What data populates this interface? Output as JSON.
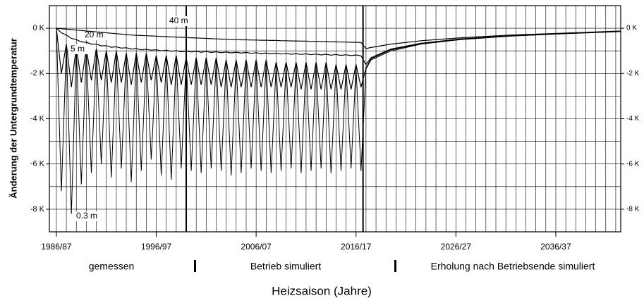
{
  "chart_data": {
    "type": "line",
    "ylabel": "Änderung der Untergrundtemperatur",
    "xlabel": "Heizsaison (Jahre)",
    "section_labels": [
      "gemessen",
      "Betrieb simuliert",
      "Erholung nach Betriebsende simuliert"
    ],
    "xlim": [
      1985.8,
      2043
    ],
    "ylim": [
      -9,
      1
    ],
    "xticks": [
      {
        "value": 1986.5,
        "label": "1986/87"
      },
      {
        "value": 1996.5,
        "label": "1996/97"
      },
      {
        "value": 2006.5,
        "label": "2006/07"
      },
      {
        "value": 2016.5,
        "label": "2016/17"
      },
      {
        "value": 2026.5,
        "label": "2026/27"
      },
      {
        "value": 2036.5,
        "label": "2036/37"
      }
    ],
    "yticks": [
      {
        "value": 0,
        "label": "0 K"
      },
      {
        "value": -2,
        "label": "-2 K"
      },
      {
        "value": -4,
        "label": "-4 K"
      },
      {
        "value": -6,
        "label": "-6 K"
      },
      {
        "value": -8,
        "label": "-8 K"
      }
    ],
    "ygrid": [
      -9,
      -8,
      -7,
      -6,
      -5,
      -4,
      -3,
      -2,
      -1,
      0
    ],
    "xgrid": [
      1986.5,
      1987.5,
      1988.5,
      1989.5,
      1990.5,
      1991.5,
      1992.5,
      1993.5,
      1994.5,
      1995.5,
      1996.5,
      1997.5,
      1998.5,
      1999.5,
      2000.5,
      2001.5,
      2002.5,
      2003.5,
      2004.5,
      2005.5,
      2006.5,
      2007.5,
      2008.5,
      2009.5,
      2010.5,
      2011.5,
      2012.5,
      2013.5,
      2014.5,
      2015.5,
      2016.5,
      2017.5,
      2018.5,
      2019.5,
      2020.5,
      2021.5,
      2022.5,
      2023.5,
      2024.5,
      2025.5,
      2026.5,
      2027.5,
      2028.5,
      2029.5,
      2030.5,
      2031.5,
      2032.5,
      2033.5,
      2034.5,
      2035.5,
      2036.5,
      2037.5,
      2038.5,
      2039.5,
      2040.5,
      2041.5,
      2042.5
    ],
    "dividers": [
      1999.5,
      2017.2
    ],
    "grid": true,
    "x": [
      1986.5,
      1987,
      1987.5,
      1988,
      1988.5,
      1989,
      1989.5,
      1990,
      1990.5,
      1991,
      1991.5,
      1992,
      1992.5,
      1993,
      1993.5,
      1994,
      1994.5,
      1995,
      1995.5,
      1996,
      1996.5,
      1997,
      1997.5,
      1998,
      1998.5,
      1999,
      1999.5,
      2000,
      2000.5,
      2001,
      2001.5,
      2002,
      2002.5,
      2003,
      2003.5,
      2004,
      2004.5,
      2005,
      2005.5,
      2006,
      2006.5,
      2007,
      2007.5,
      2008,
      2008.5,
      2009,
      2009.5,
      2010,
      2010.5,
      2011,
      2011.5,
      2012,
      2012.5,
      2013,
      2013.5,
      2014,
      2014.5,
      2015,
      2015.5,
      2016,
      2016.5,
      2017,
      2017.5,
      2018,
      2020,
      2023,
      2027,
      2032,
      2037,
      2043
    ],
    "series": [
      {
        "name": "0.3 m",
        "color": "#000000",
        "values": [
          0,
          -7.2,
          -0.8,
          -8.2,
          -0.9,
          -6.9,
          -1.0,
          -6.4,
          -1.0,
          -6.0,
          -1.1,
          -6.6,
          -1.1,
          -6.2,
          -1.2,
          -6.8,
          -1.2,
          -6.3,
          -1.2,
          -5.8,
          -1.3,
          -6.5,
          -1.3,
          -6.7,
          -1.3,
          -6.2,
          -1.4,
          -6.3,
          -1.4,
          -6.4,
          -1.4,
          -6.2,
          -1.4,
          -6.3,
          -1.5,
          -6.5,
          -1.5,
          -6.4,
          -1.5,
          -6.2,
          -1.5,
          -6.3,
          -1.5,
          -6.4,
          -1.6,
          -6.3,
          -1.6,
          -6.2,
          -1.6,
          -6.4,
          -1.6,
          -6.3,
          -1.6,
          -6.2,
          -1.6,
          -6.4,
          -1.7,
          -6.3,
          -1.7,
          -6.2,
          -1.7,
          -6.3,
          -1.8,
          -1.4,
          -1.0,
          -0.7,
          -0.5,
          -0.35,
          -0.25,
          -0.15
        ]
      },
      {
        "name": "5 m",
        "color": "#000000",
        "values": [
          0,
          -2.0,
          -0.7,
          -2.6,
          -0.8,
          -2.4,
          -0.9,
          -2.3,
          -0.9,
          -2.3,
          -1.0,
          -2.4,
          -1.0,
          -2.4,
          -1.1,
          -2.5,
          -1.1,
          -2.4,
          -1.1,
          -2.3,
          -1.2,
          -2.4,
          -1.2,
          -2.5,
          -1.2,
          -2.5,
          -1.3,
          -2.5,
          -1.3,
          -2.5,
          -1.3,
          -2.5,
          -1.3,
          -2.6,
          -1.4,
          -2.6,
          -1.4,
          -2.6,
          -1.4,
          -2.6,
          -1.4,
          -2.6,
          -1.4,
          -2.6,
          -1.5,
          -2.6,
          -1.5,
          -2.6,
          -1.5,
          -2.7,
          -1.5,
          -2.7,
          -1.5,
          -2.7,
          -1.5,
          -2.7,
          -1.6,
          -2.7,
          -1.6,
          -2.7,
          -1.6,
          -2.6,
          -1.75,
          -1.35,
          -0.95,
          -0.68,
          -0.48,
          -0.34,
          -0.24,
          -0.14
        ]
      },
      {
        "name": "20 m",
        "color": "#000000",
        "values": [
          0,
          -0.2,
          -0.3,
          -0.45,
          -0.5,
          -0.6,
          -0.62,
          -0.7,
          -0.7,
          -0.78,
          -0.77,
          -0.84,
          -0.82,
          -0.88,
          -0.86,
          -0.92,
          -0.9,
          -0.95,
          -0.93,
          -0.97,
          -0.95,
          -1.0,
          -0.97,
          -1.02,
          -0.99,
          -1.04,
          -1.01,
          -1.05,
          -1.02,
          -1.06,
          -1.03,
          -1.07,
          -1.04,
          -1.08,
          -1.05,
          -1.09,
          -1.06,
          -1.1,
          -1.07,
          -1.11,
          -1.08,
          -1.12,
          -1.09,
          -1.13,
          -1.1,
          -1.14,
          -1.11,
          -1.15,
          -1.12,
          -1.16,
          -1.13,
          -1.17,
          -1.14,
          -1.18,
          -1.15,
          -1.19,
          -1.16,
          -1.2,
          -1.17,
          -1.21,
          -1.18,
          -1.22,
          -1.6,
          -1.3,
          -0.92,
          -0.66,
          -0.47,
          -0.33,
          -0.23,
          -0.13
        ]
      },
      {
        "name": "40 m",
        "color": "#000000",
        "values": [
          0,
          -0.02,
          -0.04,
          -0.06,
          -0.08,
          -0.1,
          -0.12,
          -0.14,
          -0.16,
          -0.18,
          -0.2,
          -0.22,
          -0.24,
          -0.26,
          -0.28,
          -0.3,
          -0.31,
          -0.32,
          -0.33,
          -0.34,
          -0.35,
          -0.36,
          -0.37,
          -0.38,
          -0.39,
          -0.4,
          -0.41,
          -0.42,
          -0.43,
          -0.44,
          -0.45,
          -0.46,
          -0.47,
          -0.48,
          -0.49,
          -0.5,
          -0.5,
          -0.51,
          -0.51,
          -0.52,
          -0.52,
          -0.53,
          -0.53,
          -0.54,
          -0.54,
          -0.55,
          -0.55,
          -0.56,
          -0.56,
          -0.57,
          -0.57,
          -0.58,
          -0.58,
          -0.59,
          -0.59,
          -0.6,
          -0.6,
          -0.61,
          -0.61,
          -0.62,
          -0.62,
          -0.63,
          -0.9,
          -0.85,
          -0.7,
          -0.55,
          -0.42,
          -0.3,
          -0.22,
          -0.12
        ]
      }
    ]
  }
}
